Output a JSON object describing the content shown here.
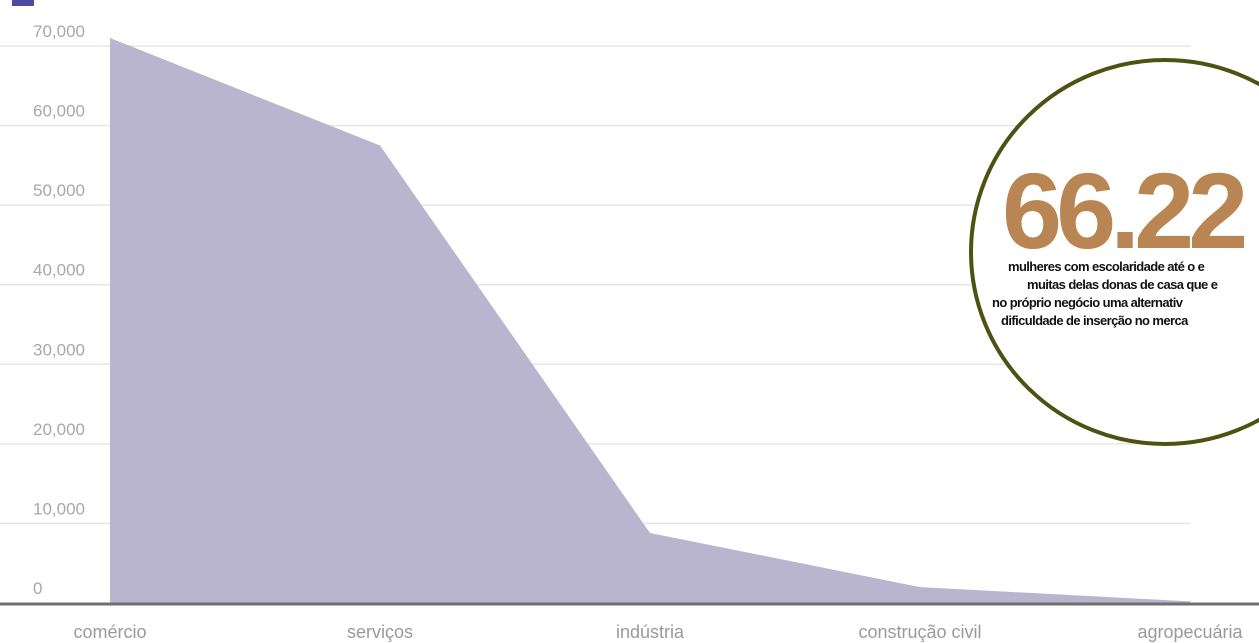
{
  "chart_data": {
    "type": "area",
    "categories": [
      "comércio",
      "serviços",
      "indústria",
      "construção civil",
      "agropecuária"
    ],
    "series": [
      {
        "values": [
          71000,
          57500,
          8800,
          2000,
          200
        ]
      }
    ],
    "yticks": [
      "0",
      "10,000",
      "20,000",
      "30,000",
      "40,000",
      "50,000",
      "60,000",
      "70,000"
    ],
    "ylim": [
      0,
      70000
    ],
    "grid": true,
    "colors": {
      "area": "#b9b5cf",
      "grid": "#e6e6e6",
      "axis": "#6f6f6f"
    }
  },
  "callout": {
    "number": "66.22",
    "lines": [
      "mulheres com escolaridade até o e",
      "muitas delas donas de casa que e",
      "no próprio negócio uma alternativ",
      "dificuldade de inserção no merca"
    ],
    "colors": {
      "number": "#b88553",
      "border": "#4d5213"
    }
  }
}
